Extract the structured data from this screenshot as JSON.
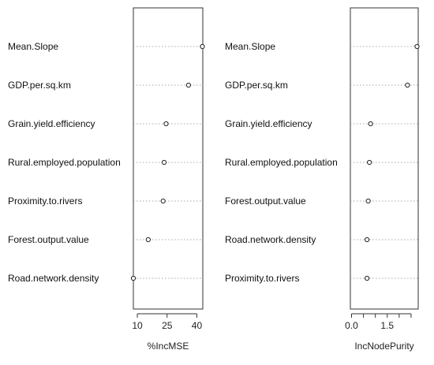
{
  "chart_data": [
    {
      "type": "scatter",
      "title": "",
      "xlabel": "%IncMSE",
      "ylabel": "",
      "xlim": [
        8,
        43
      ],
      "x_ticks": [
        10,
        25,
        40
      ],
      "x_tick_labels": [
        "10",
        "25",
        "40"
      ],
      "categories": [
        "Mean.Slope",
        "GDP.per.sq.km",
        "Grain.yield.efficiency",
        "Rural.employed.population",
        "Proximity.to.rivers",
        "Forest.output.value",
        "Road.network.density"
      ],
      "values": [
        42.8,
        35.8,
        24.5,
        23.5,
        23.0,
        15.5,
        8.0
      ],
      "grid": "horizontal dotted",
      "legend": "none"
    },
    {
      "type": "scatter",
      "title": "",
      "xlabel": "IncNodePurity",
      "ylabel": "",
      "xlim": [
        -0.05,
        2.8
      ],
      "x_ticks": [
        0.0,
        0.5,
        1.0,
        1.5,
        2.0,
        2.5
      ],
      "x_tick_labels": [
        "0.0",
        "",
        "",
        "1.5",
        "",
        ""
      ],
      "categories": [
        "Mean.Slope",
        "GDP.per.sq.km",
        "Grain.yield.efficiency",
        "Rural.employed.population",
        "Forest.output.value",
        "Road.network.density",
        "Proximity.to.rivers"
      ],
      "values": [
        2.75,
        2.35,
        0.8,
        0.75,
        0.7,
        0.65,
        0.65
      ],
      "grid": "horizontal dotted",
      "legend": "none"
    }
  ]
}
